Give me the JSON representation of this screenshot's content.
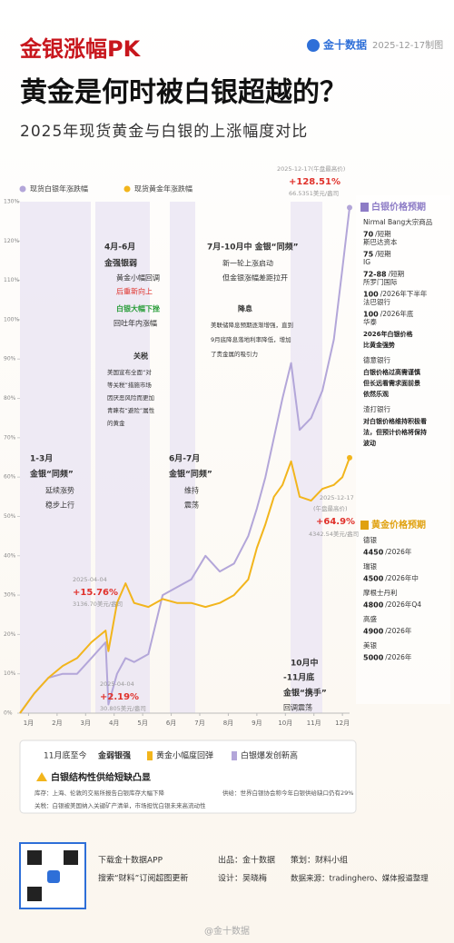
{
  "header": {
    "tag": "金银涨幅PK",
    "logo": "金十数据",
    "date": "2025-12-17制图",
    "title": "黄金是何时被白银超越的？",
    "subtitle": "2025年现货黄金与白银的上涨幅度对比"
  },
  "chart_data": {
    "type": "line",
    "x": [
      0,
      0.5,
      1,
      1.5,
      2,
      2.5,
      3,
      3.1,
      3.4,
      3.7,
      4,
      4.5,
      5,
      5.5,
      6,
      6.5,
      7,
      7.5,
      8,
      8.3,
      8.6,
      8.9,
      9.2,
      9.5,
      9.8,
      10.2,
      10.6,
      11,
      11.3,
      11.55
    ],
    "series": [
      {
        "name": "现货白银年涨跌幅",
        "color": "#b3a6d9",
        "values": [
          0,
          5,
          9,
          10,
          10,
          14,
          18,
          2.19,
          10,
          14,
          13,
          15,
          30,
          32,
          34,
          40,
          36,
          38,
          45,
          52,
          60,
          70,
          80,
          89,
          72,
          75,
          82,
          95,
          113,
          128.51
        ]
      },
      {
        "name": "现货黄金年涨跌幅",
        "color": "#f2b51c",
        "values": [
          0,
          5,
          9,
          12,
          14,
          18,
          21,
          15.76,
          28,
          33,
          28,
          27,
          29,
          28,
          28,
          27,
          28,
          30,
          34,
          42,
          48,
          55,
          58,
          64,
          55,
          54,
          57,
          58,
          60,
          64.9
        ]
      }
    ],
    "xlim": [
      0,
      11.55
    ],
    "xticks": [
      {
        "value": 0.3,
        "label": "1月"
      },
      {
        "value": 1.3,
        "label": "2月"
      },
      {
        "value": 2.3,
        "label": "3月"
      },
      {
        "value": 3.3,
        "label": "4月"
      },
      {
        "value": 4.3,
        "label": "5月"
      },
      {
        "value": 5.3,
        "label": "6月"
      },
      {
        "value": 6.3,
        "label": "7月"
      },
      {
        "value": 7.3,
        "label": "8月"
      },
      {
        "value": 8.3,
        "label": "9月"
      },
      {
        "value": 9.3,
        "label": "10月"
      },
      {
        "value": 10.3,
        "label": "11月"
      },
      {
        "value": 11.3,
        "label": "12月"
      }
    ],
    "ylim": [
      0,
      130
    ],
    "yticks": [
      {
        "value": 0,
        "label": "0%"
      },
      {
        "value": 10,
        "label": "10%"
      },
      {
        "value": 20,
        "label": "20%"
      },
      {
        "value": 30,
        "label": "30%"
      },
      {
        "value": 40,
        "label": "40%"
      },
      {
        "value": 50,
        "label": "50%"
      },
      {
        "value": 60,
        "label": "60%"
      },
      {
        "value": 70,
        "label": "70%"
      },
      {
        "value": 80,
        "label": "80%"
      },
      {
        "value": 90,
        "label": "90%"
      },
      {
        "value": 100,
        "label": "100%"
      },
      {
        "value": 110,
        "label": "110%"
      },
      {
        "value": 120,
        "label": "120%"
      },
      {
        "value": 130,
        "label": "130%"
      }
    ],
    "grid": false,
    "annotations": [
      "2025-12-17(午盘最高价)",
      "+128.51%",
      "66.5351美元/盎司",
      "4月-6月",
      "金强银弱",
      "黄金小幅回调",
      "后重新向上",
      "白银大幅下挫",
      "回吐年内涨幅",
      "关税",
      "美国宣布全面“对",
      "等关税”措施市场",
      "因厌恶风险而更加",
      "青睐有“避险”属性",
      "的黄金",
      "7月-10月中  金银“同频”",
      "新一轮上涨启动",
      "但金银涨幅差距拉开",
      "降息",
      "美联储降息预期逐渐增强，直到",
      "9月底降息落地利率降低，增加",
      "了贵金属的吸引力",
      "1-3月",
      "金银“同频”",
      "延续涨势",
      "稳步上行",
      "6月-7月",
      "金银“同频”",
      "维持",
      "震荡",
      "2025-12-17",
      "(午盘最高价)",
      "+64.9%",
      "4342.54美元/盎司",
      "2025-04-04",
      "+15.76%",
      "3136.70美元/盎司",
      "2025-04-04",
      "+2.19%",
      "30.805美元/盎司",
      "10月中",
      "-11月底",
      "金银“携手”",
      "回调震荡"
    ]
  },
  "silver_forecast": {
    "title": "白银价格预期",
    "items": [
      {
        "source": "Nirmal Bang大宗商品",
        "value": "70",
        "note": "/短期"
      },
      {
        "source": "斯巴达资本",
        "value": "75",
        "note": "/短期"
      },
      {
        "source": "IG",
        "value": "72-88",
        "note": "/短期"
      },
      {
        "source": "所罗门国际",
        "value": "100",
        "note": "/2026年下半年"
      },
      {
        "source": "法巴银行",
        "value": "100",
        "note": "/2026年底"
      },
      {
        "source": "华泰",
        "lines": [
          "2026年白银价格",
          "比黄金强势"
        ]
      },
      {
        "source": "德意银行",
        "lines": [
          "白银价格过高需谨慎",
          "但长远看需求面前景",
          "依然乐观"
        ]
      },
      {
        "source": "渣打银行",
        "lines": [
          "对白银价格维持积极看",
          "法，但预计价格将保持",
          "波动"
        ]
      }
    ]
  },
  "gold_forecast": {
    "title": "黄金价格预期",
    "items": [
      {
        "source": "德银",
        "value": "4450",
        "note": "/2026年"
      },
      {
        "source": "瑞银",
        "value": "4500",
        "note": "/2026年中"
      },
      {
        "source": "摩根士丹利",
        "value": "4800",
        "note": "/2026年Q4"
      },
      {
        "source": "高盛",
        "value": "4900",
        "note": "/2026年"
      },
      {
        "source": "美银",
        "value": "5000",
        "note": "/2026年"
      }
    ]
  },
  "summary": {
    "period": "11月底至今",
    "headline": "金弱银强",
    "gold_note": "黄金小幅度回弹",
    "silver_note": "白银爆发创新高",
    "alert": "白银结构性供给短缺凸显",
    "stock": "库存：上海、伦敦的交易所报告白银库存大幅下降",
    "supply": "供给：世界白银协会称今年白银供给缺口仍有29%",
    "tariff": "关税：白银被美国纳入关键矿产清单，市场担忧白银未来高流动性"
  },
  "footer": {
    "app": "下载金十数据APP",
    "search": "搜索“财料”订阅超图更新",
    "producer": "出品：金十数据",
    "designer": "设计：吴晓梅",
    "planner": "策划：财料小组",
    "source": "数据来源：tradinghero、媒体报道整理",
    "watermark": "@金十数据"
  }
}
